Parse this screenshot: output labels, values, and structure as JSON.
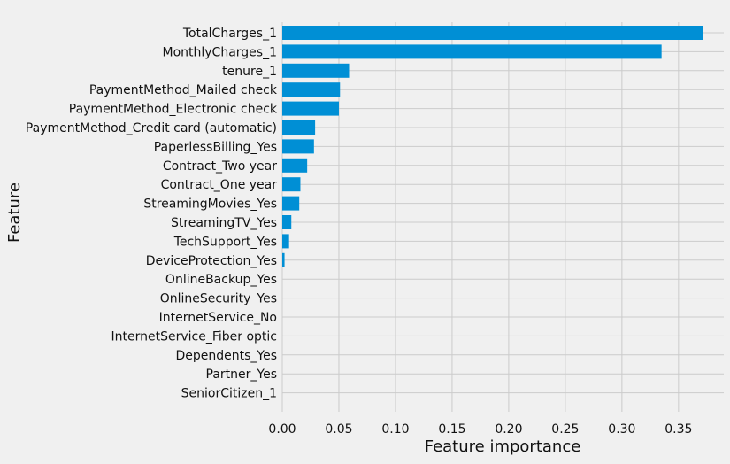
{
  "chart_data": {
    "type": "bar",
    "orientation": "horizontal",
    "xlabel": "Feature importance",
    "ylabel": "Feature",
    "xlim": [
      0,
      0.38
    ],
    "xticks": [
      "0.00",
      "0.05",
      "0.10",
      "0.15",
      "0.20",
      "0.25",
      "0.30",
      "0.35"
    ],
    "grid": true,
    "bar_color": "#008fd5",
    "background": "#f0f0f0",
    "grid_color": "#cbcbcb",
    "categories": [
      "TotalCharges_1",
      "MonthlyCharges_1",
      "tenure_1",
      "PaymentMethod_Mailed check",
      "PaymentMethod_Electronic check",
      "PaymentMethod_Credit card (automatic)",
      "PaperlessBilling_Yes",
      "Contract_Two year",
      "Contract_One year",
      "StreamingMovies_Yes",
      "StreamingTV_Yes",
      "TechSupport_Yes",
      "DeviceProtection_Yes",
      "OnlineBackup_Yes",
      "OnlineSecurity_Yes",
      "InternetService_No",
      "InternetService_Fiber optic",
      "Dependents_Yes",
      "Partner_Yes",
      "SeniorCitizen_1"
    ],
    "values": [
      0.372,
      0.335,
      0.059,
      0.051,
      0.05,
      0.029,
      0.028,
      0.022,
      0.016,
      0.015,
      0.008,
      0.006,
      0.002,
      0,
      0,
      0,
      0,
      0,
      0,
      0
    ]
  }
}
